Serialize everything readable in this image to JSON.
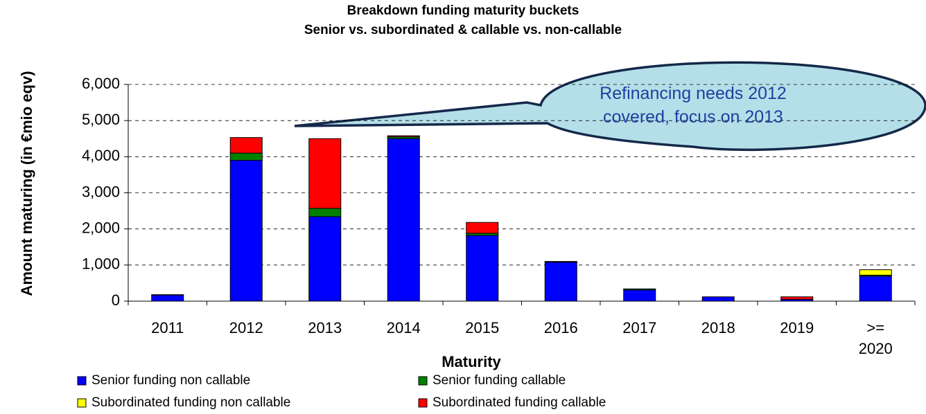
{
  "chart_data": {
    "type": "bar",
    "stacked": true,
    "title": "Breakdown funding maturity buckets",
    "subtitle": "Senior vs. subordinated & callable vs. non-callable",
    "x_label": "Maturity",
    "y_label": "Amount maturing (in €mio eqv)",
    "annotation": "Refinancing needs 2012 covered, focus on 2013",
    "categories": [
      "2011",
      "2012",
      "2013",
      "2014",
      "2015",
      "2016",
      "2017",
      "2018",
      "2019",
      ">= 2020"
    ],
    "series": [
      {
        "name": "Senior funding non callable",
        "color": "#0000ff",
        "values": [
          170,
          3900,
          2340,
          4500,
          1820,
          1080,
          310,
          120,
          50,
          690
        ]
      },
      {
        "name": "Senior funding callable",
        "color": "#008000",
        "values": [
          10,
          200,
          230,
          50,
          60,
          20,
          30,
          0,
          0,
          30
        ]
      },
      {
        "name": "Subordinated funding non callable",
        "color": "#ffff00",
        "values": [
          0,
          0,
          0,
          0,
          0,
          0,
          0,
          0,
          0,
          150
        ]
      },
      {
        "name": "Subordinated funding callable",
        "color": "#ff0000",
        "values": [
          0,
          430,
          1930,
          30,
          300,
          0,
          0,
          0,
          70,
          0
        ]
      }
    ],
    "ylim": [
      0,
      6000
    ],
    "yticks": [
      0,
      {
        "value": 1000,
        "label": "1,000"
      },
      {
        "value": 2000,
        "label": "2,000"
      },
      {
        "value": 3000,
        "label": "3,000"
      },
      {
        "value": 4000,
        "label": "4,000"
      },
      {
        "value": 5000,
        "label": "5,000"
      },
      {
        "value": 6000,
        "label": "6,000"
      }
    ],
    "grid": true
  }
}
